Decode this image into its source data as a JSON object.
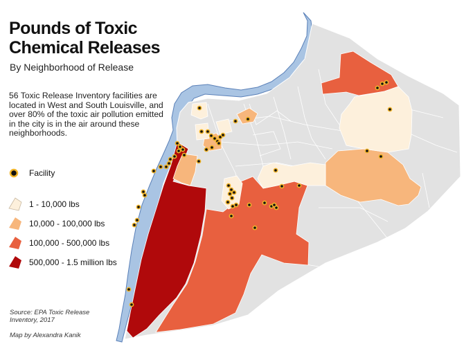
{
  "title_line1": "Pounds of Toxic",
  "title_line2": "Chemical Releases",
  "subtitle": "By Neighborhood of Release",
  "description": "56 Toxic Release Inventory facilities are located in West and South Louisville, and over 80% of the toxic air pollution emitted in the city is in the air around these neighborhoods.",
  "legend": {
    "facility_label": "Facility",
    "classes": [
      {
        "label": "1 - 10,000 lbs",
        "color": "#fdf0dc"
      },
      {
        "label": "10,000 - 100,000 lbs",
        "color": "#f7b67c"
      },
      {
        "label": "100,000 - 500,000 lbs",
        "color": "#e8603f"
      },
      {
        "label": "500,000 - 1.5 million lbs",
        "color": "#b0090b"
      }
    ]
  },
  "colors": {
    "no_release": "#e2e2e2",
    "river": "#a9c4e3",
    "river_outline": "#5a80b8",
    "facility_fill": "#111111",
    "facility_ring": "#f0b429"
  },
  "source": "Source: EPA Toxic Release Inventory, 2017",
  "credit": "Map by Alexandra Kanik"
}
